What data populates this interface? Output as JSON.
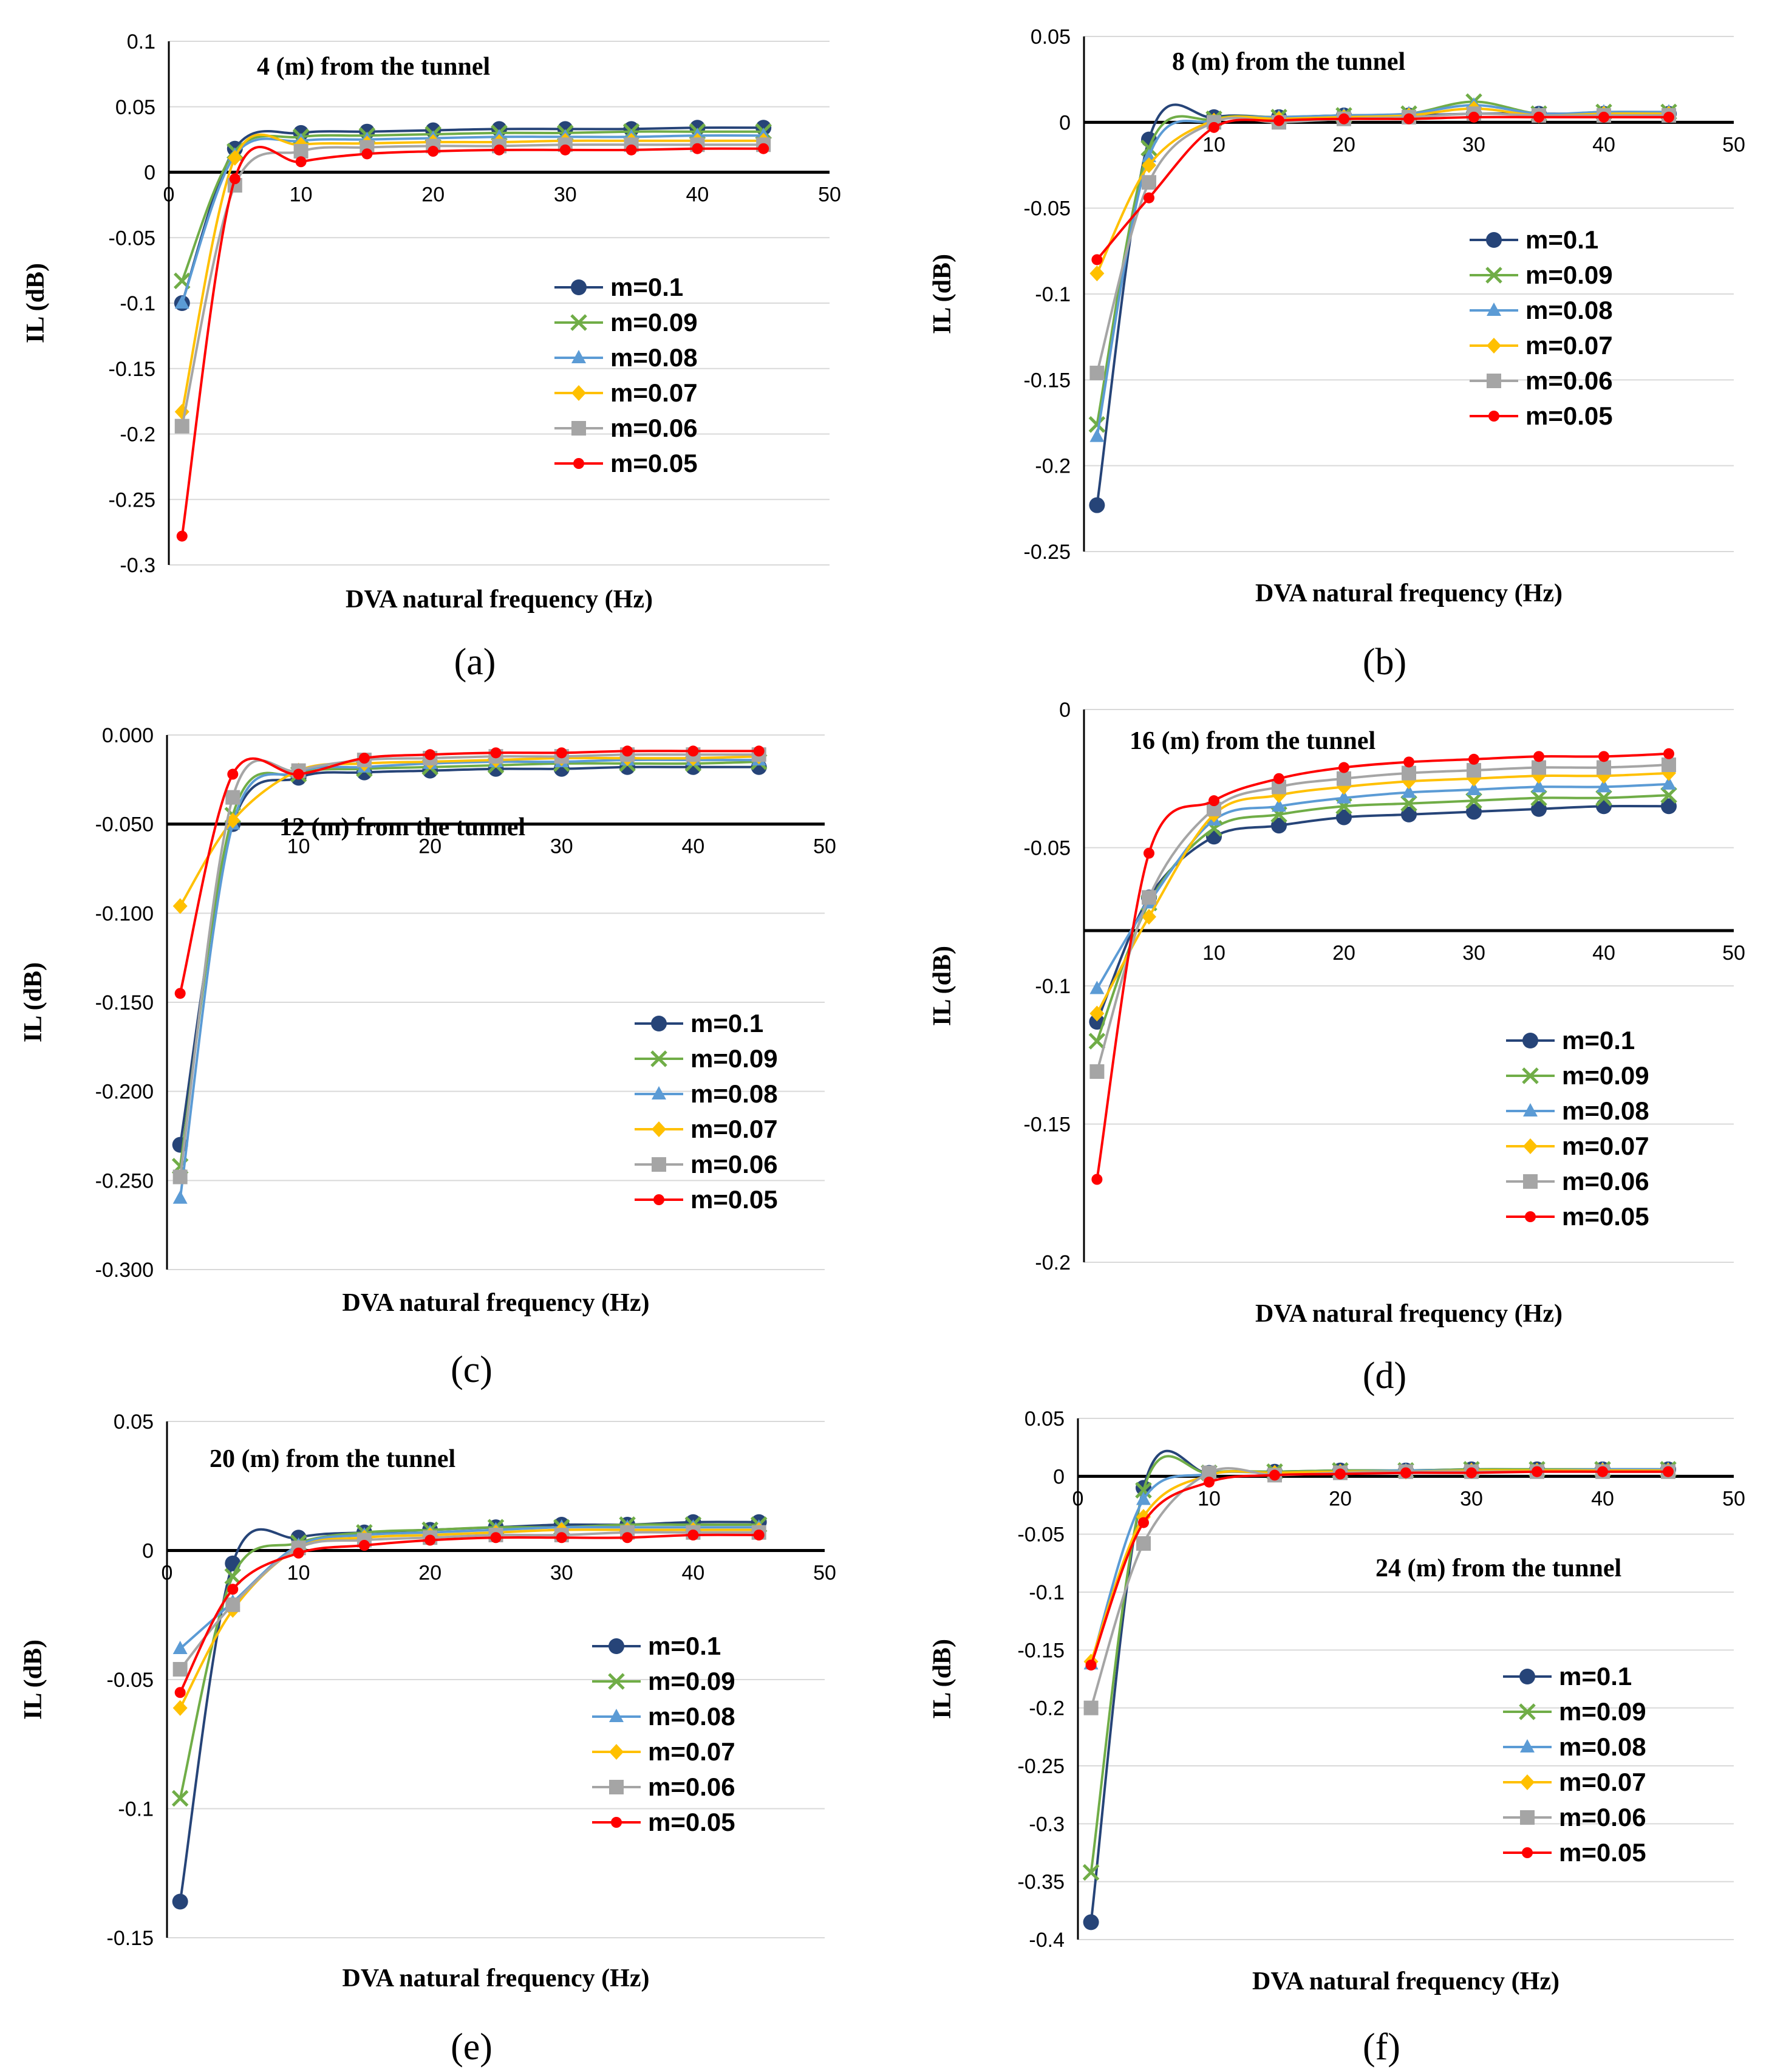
{
  "figure": {
    "colors": {
      "m=0.1": "#264478",
      "m=0.09": "#70ad47",
      "m=0.08": "#5b9bd5",
      "m=0.07": "#ffc000",
      "m=0.06": "#a5a5a5",
      "m=0.05": "#ff0000"
    },
    "markers": {
      "m=0.1": "circle",
      "m=0.09": "x",
      "m=0.08": "triangle",
      "m=0.07": "diamond",
      "m=0.06": "square",
      "m=0.05": "small-circle"
    }
  },
  "chart_data": [
    {
      "type": "line",
      "panel_label": "(a)",
      "title": "4 (m) from the tunnel",
      "xlabel": "DVA natural frequency (Hz)",
      "ylabel": "IL (dB)",
      "xlim": [
        0,
        50
      ],
      "ylim": [
        -0.3,
        0.1
      ],
      "xticks": [
        "0",
        "10",
        "20",
        "30",
        "40",
        "50"
      ],
      "yticks": [
        "0.1",
        "0.05",
        "0",
        "-0.05",
        "-0.1",
        "-0.15",
        "-0.2",
        "-0.25",
        "-0.3"
      ],
      "x": [
        1,
        5,
        10,
        15,
        20,
        25,
        30,
        35,
        40,
        45
      ],
      "series": [
        {
          "name": "m=0.1",
          "values": [
            -0.1,
            0.018,
            0.03,
            0.031,
            0.032,
            0.033,
            0.033,
            0.033,
            0.034,
            0.034
          ]
        },
        {
          "name": "m=0.09",
          "values": [
            -0.083,
            0.016,
            0.027,
            0.028,
            0.029,
            0.03,
            0.03,
            0.031,
            0.031,
            0.031
          ]
        },
        {
          "name": "m=0.08",
          "values": [
            -0.1,
            0.013,
            0.024,
            0.025,
            0.026,
            0.027,
            0.027,
            0.027,
            0.028,
            0.028
          ]
        },
        {
          "name": "m=0.07",
          "values": [
            -0.183,
            0.011,
            0.021,
            0.022,
            0.023,
            0.023,
            0.024,
            0.024,
            0.024,
            0.024
          ]
        },
        {
          "name": "m=0.06",
          "values": [
            -0.194,
            -0.01,
            0.016,
            0.019,
            0.02,
            0.02,
            0.021,
            0.021,
            0.021,
            0.021
          ]
        },
        {
          "name": "m=0.05",
          "values": [
            -0.278,
            -0.005,
            0.008,
            0.014,
            0.016,
            0.017,
            0.017,
            0.017,
            0.018,
            0.018
          ]
        }
      ],
      "legend": [
        "m=0.1",
        "m=0.09",
        "m=0.08",
        "m=0.07",
        "m=0.06",
        "m=0.05"
      ]
    },
    {
      "type": "line",
      "panel_label": "(b)",
      "title": "8 (m) from the tunnel",
      "xlabel": "DVA natural frequency (Hz)",
      "ylabel": "IL (dB)",
      "xlim": [
        0,
        50
      ],
      "ylim": [
        -0.25,
        0.05
      ],
      "xticks": [
        "10",
        "20",
        "30",
        "40",
        "50"
      ],
      "yticks": [
        "0.05",
        "0",
        "-0.05",
        "-0.1",
        "-0.15",
        "-0.2",
        "-0.25"
      ],
      "x": [
        1,
        5,
        10,
        15,
        20,
        25,
        30,
        35,
        40,
        45
      ],
      "series": [
        {
          "name": "m=0.1",
          "values": [
            -0.223,
            -0.01,
            0.003,
            0.003,
            0.004,
            0.004,
            0.005,
            0.005,
            0.005,
            0.005
          ]
        },
        {
          "name": "m=0.09",
          "values": [
            -0.176,
            -0.015,
            0.002,
            0.003,
            0.004,
            0.005,
            0.012,
            0.005,
            0.006,
            0.006
          ]
        },
        {
          "name": "m=0.08",
          "values": [
            -0.183,
            -0.02,
            0.001,
            0.003,
            0.004,
            0.005,
            0.01,
            0.005,
            0.006,
            0.006
          ]
        },
        {
          "name": "m=0.07",
          "values": [
            -0.088,
            -0.025,
            0.001,
            0.002,
            0.003,
            0.004,
            0.008,
            0.004,
            0.005,
            0.005
          ]
        },
        {
          "name": "m=0.06",
          "values": [
            -0.146,
            -0.035,
            0.0,
            0.0,
            0.002,
            0.003,
            0.005,
            0.004,
            0.004,
            0.004
          ]
        },
        {
          "name": "m=0.05",
          "values": [
            -0.08,
            -0.044,
            -0.003,
            0.001,
            0.002,
            0.002,
            0.003,
            0.003,
            0.003,
            0.003
          ]
        }
      ],
      "legend": [
        "m=0.1",
        "m=0.09",
        "m=0.08",
        "m=0.07",
        "m=0.06",
        "m=0.05"
      ]
    },
    {
      "type": "line",
      "panel_label": "(c)",
      "title": "12 (m) from the tunnel",
      "xlabel": "DVA natural frequency (Hz)",
      "ylabel": "IL (dB)",
      "xlim": [
        0,
        50
      ],
      "ylim": [
        -0.3,
        0
      ],
      "xticks": [
        "10",
        "20",
        "30",
        "40",
        "50"
      ],
      "yticks": [
        "0.000",
        "-0.050",
        "-0.100",
        "-0.150",
        "-0.200",
        "-0.250",
        "-0.300"
      ],
      "axis_line_y": -0.05,
      "x": [
        1,
        5,
        10,
        15,
        20,
        25,
        30,
        35,
        40,
        45
      ],
      "series": [
        {
          "name": "m=0.1",
          "values": [
            -0.23,
            -0.05,
            -0.024,
            -0.021,
            -0.02,
            -0.019,
            -0.019,
            -0.018,
            -0.018,
            -0.018
          ]
        },
        {
          "name": "m=0.09",
          "values": [
            -0.242,
            -0.045,
            -0.022,
            -0.019,
            -0.018,
            -0.017,
            -0.016,
            -0.016,
            -0.016,
            -0.015
          ]
        },
        {
          "name": "m=0.08",
          "values": [
            -0.26,
            -0.05,
            -0.021,
            -0.018,
            -0.016,
            -0.015,
            -0.015,
            -0.014,
            -0.014,
            -0.014
          ]
        },
        {
          "name": "m=0.07",
          "values": [
            -0.096,
            -0.048,
            -0.02,
            -0.016,
            -0.015,
            -0.014,
            -0.013,
            -0.013,
            -0.013,
            -0.012
          ]
        },
        {
          "name": "m=0.06",
          "values": [
            -0.248,
            -0.035,
            -0.02,
            -0.014,
            -0.013,
            -0.012,
            -0.012,
            -0.011,
            -0.011,
            -0.011
          ]
        },
        {
          "name": "m=0.05",
          "values": [
            -0.145,
            -0.022,
            -0.022,
            -0.013,
            -0.011,
            -0.01,
            -0.01,
            -0.009,
            -0.009,
            -0.009
          ]
        }
      ],
      "legend": [
        "m=0.1",
        "m=0.09",
        "m=0.08",
        "m=0.07",
        "m=0.06",
        "m=0.05"
      ]
    },
    {
      "type": "line",
      "panel_label": "(d)",
      "title": "16 (m) from the tunnel",
      "xlabel": "DVA natural frequency (Hz)",
      "ylabel": "IL (dB)",
      "xlim": [
        0,
        50
      ],
      "ylim": [
        -0.2,
        0
      ],
      "xticks": [
        "10",
        "20",
        "30",
        "40",
        "50"
      ],
      "yticks": [
        "0",
        "-0.05",
        "-0.1",
        "-0.15",
        "-0.2"
      ],
      "axis_line_y": -0.08,
      "x": [
        1,
        5,
        10,
        15,
        20,
        25,
        30,
        35,
        40,
        45
      ],
      "series": [
        {
          "name": "m=0.1",
          "values": [
            -0.113,
            -0.068,
            -0.046,
            -0.042,
            -0.039,
            -0.038,
            -0.037,
            -0.036,
            -0.035,
            -0.035
          ]
        },
        {
          "name": "m=0.09",
          "values": [
            -0.12,
            -0.07,
            -0.043,
            -0.038,
            -0.035,
            -0.034,
            -0.033,
            -0.032,
            -0.032,
            -0.031
          ]
        },
        {
          "name": "m=0.08",
          "values": [
            -0.101,
            -0.07,
            -0.04,
            -0.035,
            -0.032,
            -0.03,
            -0.029,
            -0.028,
            -0.028,
            -0.027
          ]
        },
        {
          "name": "m=0.07",
          "values": [
            -0.11,
            -0.075,
            -0.038,
            -0.031,
            -0.028,
            -0.026,
            -0.025,
            -0.024,
            -0.024,
            -0.023
          ]
        },
        {
          "name": "m=0.06",
          "values": [
            -0.131,
            -0.068,
            -0.036,
            -0.028,
            -0.025,
            -0.023,
            -0.022,
            -0.021,
            -0.021,
            -0.02
          ]
        },
        {
          "name": "m=0.05",
          "values": [
            -0.17,
            -0.052,
            -0.033,
            -0.025,
            -0.021,
            -0.019,
            -0.018,
            -0.017,
            -0.017,
            -0.016
          ]
        }
      ],
      "legend": [
        "m=0.1",
        "m=0.09",
        "m=0.08",
        "m=0.07",
        "m=0.06",
        "m=0.05"
      ]
    },
    {
      "type": "line",
      "panel_label": "(e)",
      "title": "20 (m) from the tunnel",
      "xlabel": "DVA natural frequency (Hz)",
      "ylabel": "IL (dB)",
      "xlim": [
        0,
        50
      ],
      "ylim": [
        -0.15,
        0.05
      ],
      "xticks": [
        "0",
        "10",
        "20",
        "30",
        "40",
        "50"
      ],
      "yticks": [
        "0.05",
        "0",
        "-0.05",
        "-0.1",
        "-0.15"
      ],
      "x": [
        1,
        5,
        10,
        15,
        20,
        25,
        30,
        35,
        40,
        45
      ],
      "series": [
        {
          "name": "m=0.1",
          "values": [
            -0.136,
            -0.005,
            0.005,
            0.007,
            0.008,
            0.009,
            0.01,
            0.01,
            0.011,
            0.011
          ]
        },
        {
          "name": "m=0.09",
          "values": [
            -0.096,
            -0.01,
            0.003,
            0.007,
            0.008,
            0.009,
            0.009,
            0.01,
            0.01,
            0.01
          ]
        },
        {
          "name": "m=0.08",
          "values": [
            -0.038,
            -0.02,
            0.002,
            0.006,
            0.007,
            0.008,
            0.009,
            0.009,
            0.009,
            0.009
          ]
        },
        {
          "name": "m=0.07",
          "values": [
            -0.061,
            -0.023,
            0.001,
            0.005,
            0.006,
            0.007,
            0.008,
            0.008,
            0.008,
            0.008
          ]
        },
        {
          "name": "m=0.06",
          "values": [
            -0.046,
            -0.021,
            0.001,
            0.004,
            0.005,
            0.006,
            0.006,
            0.007,
            0.007,
            0.007
          ]
        },
        {
          "name": "m=0.05",
          "values": [
            -0.055,
            -0.015,
            -0.001,
            0.002,
            0.004,
            0.005,
            0.005,
            0.005,
            0.006,
            0.006
          ]
        }
      ],
      "legend": [
        "m=0.1",
        "m=0.09",
        "m=0.08",
        "m=0.07",
        "m=0.06",
        "m=0.05"
      ]
    },
    {
      "type": "line",
      "panel_label": "(f)",
      "title": "24 (m) from the tunnel",
      "xlabel": "DVA natural frequency (Hz)",
      "ylabel": "IL (dB)",
      "xlim": [
        0,
        50
      ],
      "ylim": [
        -0.4,
        0.05
      ],
      "xticks": [
        "0",
        "10",
        "20",
        "30",
        "40",
        "50"
      ],
      "yticks": [
        "0.05",
        "0",
        "-0.05",
        "-0.1",
        "-0.15",
        "-0.2",
        "-0.25",
        "-0.3",
        "-0.35",
        "-0.4"
      ],
      "x": [
        1,
        5,
        10,
        15,
        20,
        25,
        30,
        35,
        40,
        45
      ],
      "series": [
        {
          "name": "m=0.1",
          "values": [
            -0.385,
            -0.01,
            0.003,
            0.004,
            0.005,
            0.005,
            0.006,
            0.006,
            0.006,
            0.006
          ]
        },
        {
          "name": "m=0.09",
          "values": [
            -0.342,
            -0.012,
            0.003,
            0.004,
            0.005,
            0.005,
            0.006,
            0.006,
            0.006,
            0.006
          ]
        },
        {
          "name": "m=0.08",
          "values": [
            -0.162,
            -0.02,
            0.002,
            0.003,
            0.004,
            0.005,
            0.005,
            0.005,
            0.006,
            0.006
          ]
        },
        {
          "name": "m=0.07",
          "values": [
            -0.16,
            -0.035,
            0.001,
            0.003,
            0.004,
            0.004,
            0.005,
            0.005,
            0.005,
            0.005
          ]
        },
        {
          "name": "m=0.06",
          "values": [
            -0.2,
            -0.058,
            0.003,
            0.001,
            0.003,
            0.004,
            0.004,
            0.004,
            0.004,
            0.004
          ]
        },
        {
          "name": "m=0.05",
          "values": [
            -0.163,
            -0.04,
            -0.005,
            0.001,
            0.002,
            0.003,
            0.003,
            0.004,
            0.004,
            0.004
          ]
        }
      ],
      "legend": [
        "m=0.1",
        "m=0.09",
        "m=0.08",
        "m=0.07",
        "m=0.06",
        "m=0.05"
      ]
    }
  ]
}
